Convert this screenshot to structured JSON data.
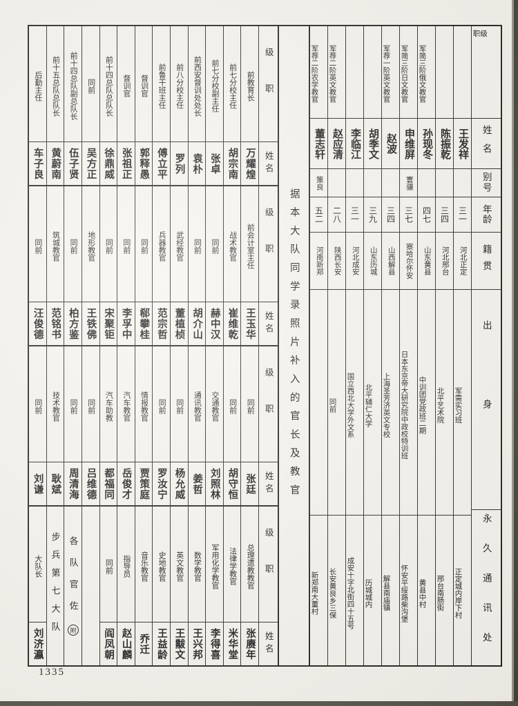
{
  "page": {
    "number": "1335"
  },
  "middle_note": "据本大队同学录照片补入的官长及教官",
  "right_table": {
    "headers": {
      "rank": "级职",
      "name": "姓名",
      "alias": "别号",
      "age": "年龄",
      "native": "籍贯",
      "origin": "出身",
      "address": "永久通讯处"
    },
    "people": [
      {
        "rank": "",
        "name": "王发祥",
        "alias": "",
        "age": "三一",
        "native": "河北正定",
        "origin": "军需实习班",
        "address": "正定城内岸下村"
      },
      {
        "rank": "",
        "name": "陈振乾",
        "alias": "",
        "age": "三四",
        "native": "河北邢台",
        "origin": "北平艺术院",
        "address": "邢台南肠街"
      },
      {
        "rank": "军简三阶俄文教官",
        "name": "孙现冬",
        "alias": "",
        "age": "四七",
        "native": "山东黄县",
        "origin": "中训团党政班二期",
        "address": "黄县中村"
      },
      {
        "rank": "军简三阶日文教官",
        "name": "申维屏",
        "alias": "寰骧",
        "age": "三七",
        "native": "察哈尔怀安",
        "origin": "日本东京帝大研究院中政校特训班",
        "address": "怀安平绥路柴沟堡"
      },
      {
        "rank": "军荐一阶英文教官",
        "name": "赵波",
        "alias": "",
        "age": "三四",
        "native": "山西解县",
        "origin": "上海圣芳济英文专校",
        "address": "解县南庙镇"
      },
      {
        "rank": "",
        "name": "胡季文",
        "alias": "",
        "age": "三九",
        "native": "山东历城",
        "origin": "北平辅仁大学",
        "address": "历城城内"
      },
      {
        "rank": "",
        "name": "李临江",
        "alias": "",
        "age": "三一",
        "native": "河北成安",
        "origin": "国立西北大学外文系",
        "address": "成安十字北街四十五号"
      },
      {
        "rank": "军荐二阶英文教官",
        "name": "赵应清",
        "alias": "",
        "age": "二八",
        "native": "陕西长安",
        "origin": "同前",
        "address": "长安黄良乡三保"
      },
      {
        "rank": "军荐二阶农学教官",
        "name": "董志轩",
        "alias": "策良",
        "age": "五二",
        "native": "河南新郑",
        "origin": "",
        "address": "新郑南大董村"
      }
    ]
  },
  "strips": [
    {
      "header": {
        "rank": "级职",
        "name": "姓名"
      },
      "entries": [
        {
          "type": "person",
          "rank": "前教育长",
          "name": "万耀煌"
        },
        {
          "type": "person",
          "rank": "前七分校主任",
          "name": "胡宗南"
        },
        {
          "type": "person",
          "rank": "前七分校副主任",
          "name": "张卓"
        },
        {
          "type": "person",
          "rank": "前西安督训处处长",
          "name": "袁朴"
        },
        {
          "type": "person",
          "rank": "前八分校主任",
          "name": "罗列"
        },
        {
          "type": "person",
          "rank": "前鲁干班主任",
          "name": "傅立平"
        },
        {
          "type": "person",
          "rank": "督训官",
          "name": "郭释愚"
        },
        {
          "type": "person",
          "rank": "督训官",
          "name": "张祖正"
        },
        {
          "type": "person",
          "rank": "前十四总队总队长",
          "name": "徐鼎威"
        },
        {
          "type": "person",
          "rank": "同前",
          "name": "吴方正"
        },
        {
          "type": "person",
          "rank": "前十四总队副总队长",
          "name": "伍子贤"
        },
        {
          "type": "person",
          "rank": "前十五总队总队长",
          "name": "黄蔚南"
        },
        {
          "type": "person",
          "rank": "后勤主任",
          "name": "车子良"
        }
      ]
    },
    {
      "header": {
        "rank": "级职",
        "name": "姓名"
      },
      "entries": [
        {
          "type": "person",
          "rank": "前会计室主任",
          "name": "王玉华"
        },
        {
          "type": "person",
          "rank": "战术教官",
          "name": "崔维乾"
        },
        {
          "type": "person",
          "rank": "同前",
          "name": "赫中汉"
        },
        {
          "type": "person",
          "rank": "同前",
          "name": "胡介山"
        },
        {
          "type": "person",
          "rank": "武经教官",
          "name": "董植桢"
        },
        {
          "type": "person",
          "rank": "兵器教官",
          "name": "范宗哲"
        },
        {
          "type": "person",
          "rank": "同前",
          "name": "郗攀桂"
        },
        {
          "type": "person",
          "rank": "同前",
          "name": "李孚中"
        },
        {
          "type": "person",
          "rank": "同前",
          "name": "宋聚钜"
        },
        {
          "type": "person",
          "rank": "地形教官",
          "name": "王铁佛"
        },
        {
          "type": "person",
          "rank": "同前",
          "name": "柏方鉴"
        },
        {
          "type": "person",
          "rank": "筑城教官",
          "name": "范铭书"
        },
        {
          "type": "person",
          "rank": "同前",
          "name": "汪俊德"
        }
      ]
    },
    {
      "header": {
        "rank": "级职",
        "name": "姓名"
      },
      "entries": [
        {
          "type": "person",
          "rank": "同前",
          "name": "张廷"
        },
        {
          "type": "person",
          "rank": "同前",
          "name": "胡守恒"
        },
        {
          "type": "person",
          "rank": "交通教官",
          "name": "刘照林"
        },
        {
          "type": "person",
          "rank": "通讯教官",
          "name": "姜哲"
        },
        {
          "type": "person",
          "rank": "同前",
          "name": "杨允威"
        },
        {
          "type": "person",
          "rank": "同前",
          "name": "罗汝宁"
        },
        {
          "type": "person",
          "rank": "情报教官",
          "name": "贾策庭"
        },
        {
          "type": "person",
          "rank": "汽车教官",
          "name": "岳俊才"
        },
        {
          "type": "person",
          "rank": "汽车助教",
          "name": "都福同"
        },
        {
          "type": "person",
          "rank": "同前",
          "name": "吕维德"
        },
        {
          "type": "person",
          "rank": "同前",
          "name": "周清海"
        },
        {
          "type": "person",
          "rank": "技术教官",
          "name": "耿斌"
        },
        {
          "type": "person",
          "rank": "同前",
          "name": "刘谦"
        }
      ]
    },
    {
      "header": {
        "rank": "级职",
        "name": "姓名"
      },
      "entries": [
        {
          "type": "person",
          "rank": "总理遗教教官",
          "name": "张赓年"
        },
        {
          "type": "person",
          "rank": "法律学教官",
          "name": "米华堂"
        },
        {
          "type": "person",
          "rank": "军用化学教官",
          "name": "李得喜"
        },
        {
          "type": "person",
          "rank": "数学教官",
          "name": "王兴邦"
        },
        {
          "type": "person",
          "rank": "英文教官",
          "name": "王黻文"
        },
        {
          "type": "person",
          "rank": "史地教官",
          "name": "王益龄"
        },
        {
          "type": "person",
          "rank": "音乐教官",
          "name": "乔迁"
        },
        {
          "type": "person",
          "rank": "指导员",
          "name": "赵山麟"
        },
        {
          "type": "person",
          "rank": "同前",
          "name": "阎凤朝"
        },
        {
          "type": "blank"
        },
        {
          "type": "banner",
          "label": "各队官佐",
          "mark": "附"
        },
        {
          "type": "banner",
          "label": "步兵第七大队",
          "mark": ""
        },
        {
          "type": "person",
          "rank": "大队长",
          "name": "刘济瀛"
        }
      ]
    }
  ]
}
